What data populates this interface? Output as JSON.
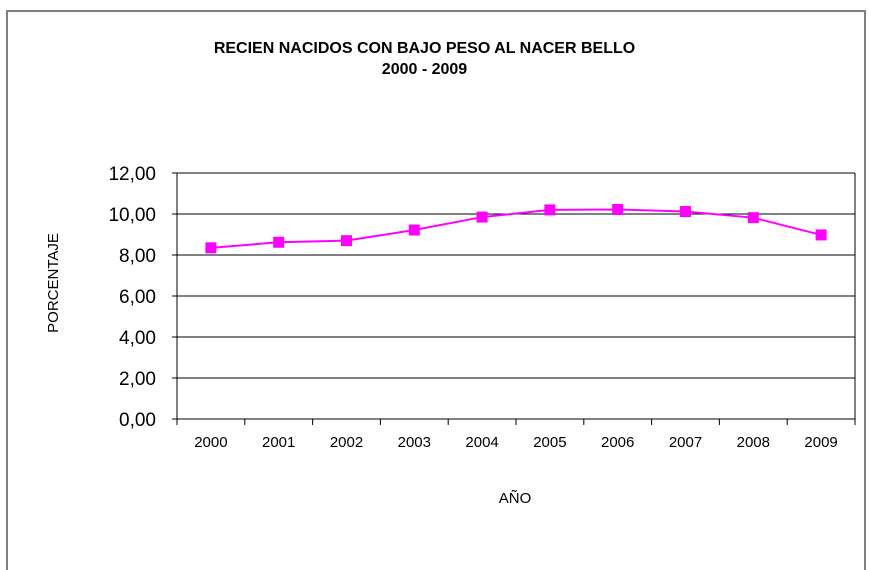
{
  "chart_data": {
    "type": "line",
    "title": "RECIEN NACIDOS CON BAJO PESO AL NACER BELLO",
    "subtitle": "2000 - 2009",
    "xlabel": "AÑO",
    "ylabel": "PORCENTAJE",
    "categories": [
      "2000",
      "2001",
      "2002",
      "2003",
      "2004",
      "2005",
      "2006",
      "2007",
      "2008",
      "2009"
    ],
    "series": [
      {
        "values": [
          8.35,
          8.62,
          8.7,
          9.22,
          9.85,
          10.2,
          10.22,
          10.12,
          9.82,
          8.98
        ]
      }
    ],
    "ylim": [
      0,
      12
    ],
    "yticks": [
      "0,00",
      "2,00",
      "4,00",
      "6,00",
      "8,00",
      "10,00",
      "12,00"
    ],
    "grid": true,
    "series_color": "#ff00ff"
  }
}
